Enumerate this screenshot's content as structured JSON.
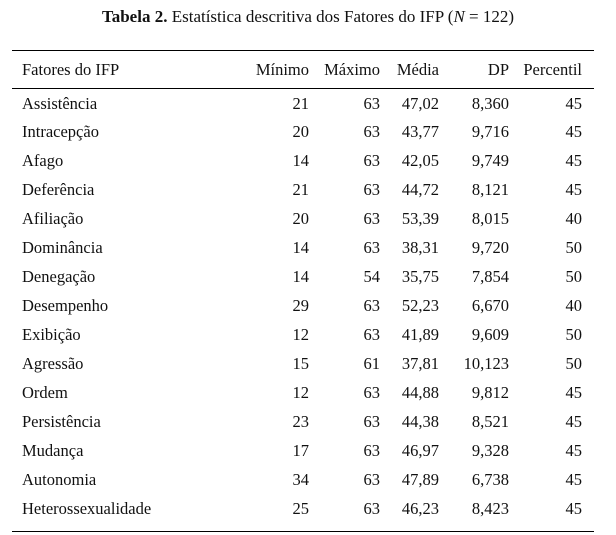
{
  "caption": {
    "label": "Tabela 2.",
    "text_before_n": " Estatística descritiva dos Fatores do IFP (",
    "n_symbol": "N",
    "text_after_n": " = 122)"
  },
  "table": {
    "headers": [
      "Fatores do IFP",
      "Mínimo",
      "Máximo",
      "Média",
      "DP",
      "Percentil"
    ],
    "rows": [
      [
        "Assistência",
        "21",
        "63",
        "47,02",
        "8,360",
        "45"
      ],
      [
        "Intracepção",
        "20",
        "63",
        "43,77",
        "9,716",
        "45"
      ],
      [
        "Afago",
        "14",
        "63",
        "42,05",
        "9,749",
        "45"
      ],
      [
        "Deferência",
        "21",
        "63",
        "44,72",
        "8,121",
        "45"
      ],
      [
        "Afiliação",
        "20",
        "63",
        "53,39",
        "8,015",
        "40"
      ],
      [
        "Dominância",
        "14",
        "63",
        "38,31",
        "9,720",
        "50"
      ],
      [
        "Denegação",
        "14",
        "54",
        "35,75",
        "7,854",
        "50"
      ],
      [
        "Desempenho",
        "29",
        "63",
        "52,23",
        "6,670",
        "40"
      ],
      [
        "Exibição",
        "12",
        "63",
        "41,89",
        "9,609",
        "50"
      ],
      [
        "Agressão",
        "15",
        "61",
        "37,81",
        "10,123",
        "50"
      ],
      [
        "Ordem",
        "12",
        "63",
        "44,88",
        "9,812",
        "45"
      ],
      [
        "Persistência",
        "23",
        "63",
        "44,38",
        "8,521",
        "45"
      ],
      [
        "Mudança",
        "17",
        "63",
        "46,97",
        "9,328",
        "45"
      ],
      [
        "Autonomia",
        "34",
        "63",
        "47,89",
        "6,738",
        "45"
      ],
      [
        "Heterossexualidade",
        "25",
        "63",
        "46,23",
        "8,423",
        "45"
      ]
    ]
  }
}
